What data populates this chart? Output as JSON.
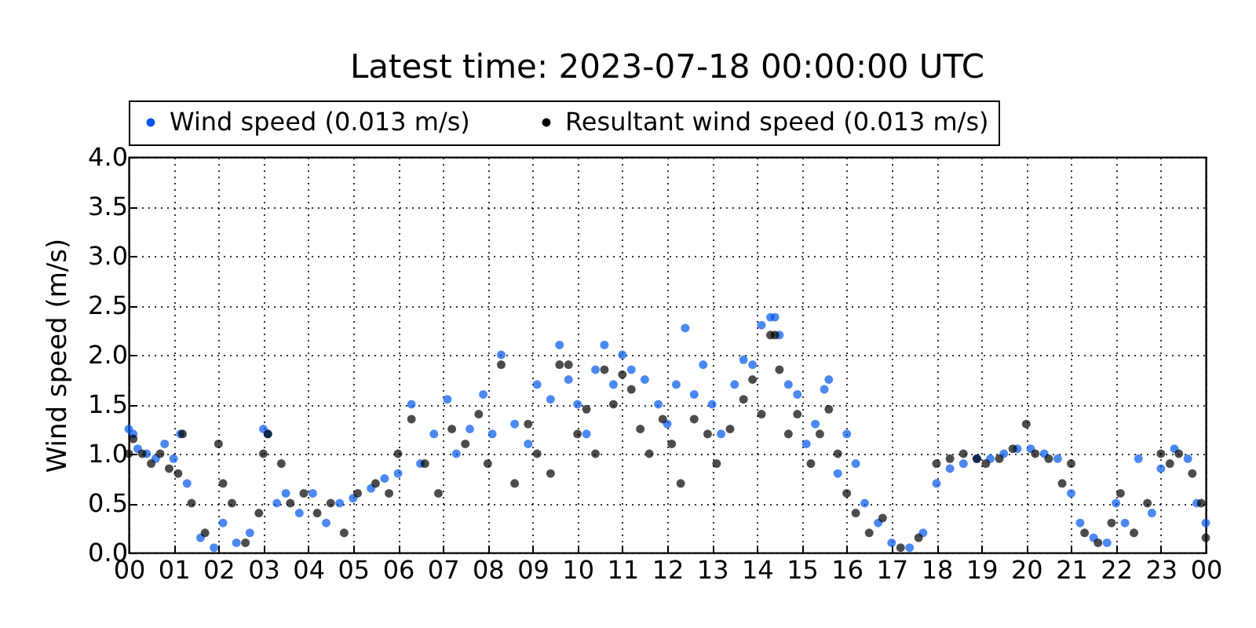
{
  "chart_data": {
    "type": "scatter",
    "title": "Latest time: 2023-07-18 00:00:00 UTC",
    "ylabel": "Wind speed (m/s)",
    "xlim": [
      0,
      24
    ],
    "ylim": [
      0,
      4
    ],
    "xticks": [
      {
        "value": 0,
        "label": "00"
      },
      {
        "value": 1,
        "label": "01"
      },
      {
        "value": 2,
        "label": "02"
      },
      {
        "value": 3,
        "label": "03"
      },
      {
        "value": 4,
        "label": "04"
      },
      {
        "value": 5,
        "label": "05"
      },
      {
        "value": 6,
        "label": "06"
      },
      {
        "value": 7,
        "label": "07"
      },
      {
        "value": 8,
        "label": "08"
      },
      {
        "value": 9,
        "label": "09"
      },
      {
        "value": 10,
        "label": "10"
      },
      {
        "value": 11,
        "label": "11"
      },
      {
        "value": 12,
        "label": "12"
      },
      {
        "value": 13,
        "label": "13"
      },
      {
        "value": 14,
        "label": "14"
      },
      {
        "value": 15,
        "label": "15"
      },
      {
        "value": 16,
        "label": "16"
      },
      {
        "value": 17,
        "label": "17"
      },
      {
        "value": 18,
        "label": "18"
      },
      {
        "value": 19,
        "label": "19"
      },
      {
        "value": 20,
        "label": "20"
      },
      {
        "value": 21,
        "label": "21"
      },
      {
        "value": 22,
        "label": "22"
      },
      {
        "value": 23,
        "label": "23"
      },
      {
        "value": 24,
        "label": "00"
      }
    ],
    "yticks": [
      {
        "value": 0,
        "label": "0.0"
      },
      {
        "value": 0.5,
        "label": "0.5"
      },
      {
        "value": 1,
        "label": "1.0"
      },
      {
        "value": 1.5,
        "label": "1.5"
      },
      {
        "value": 2,
        "label": "2.0"
      },
      {
        "value": 2.5,
        "label": "2.5"
      },
      {
        "value": 3,
        "label": "3.0"
      },
      {
        "value": 3.5,
        "label": "3.5"
      },
      {
        "value": 4,
        "label": "4.0"
      }
    ],
    "grid": true,
    "legend": "top",
    "marker": "circle",
    "series": [
      {
        "name": "Wind speed (0.013 m/s)",
        "color": "#0055ee",
        "x": [
          0.0,
          0.1,
          0.2,
          0.4,
          0.6,
          0.8,
          1.0,
          1.15,
          1.3,
          1.6,
          1.9,
          2.1,
          2.4,
          2.7,
          3.0,
          3.1,
          3.3,
          3.5,
          3.8,
          4.1,
          4.4,
          4.7,
          5.0,
          5.4,
          5.7,
          6.0,
          6.3,
          6.5,
          6.8,
          7.1,
          7.3,
          7.6,
          7.9,
          8.1,
          8.3,
          8.6,
          8.9,
          9.1,
          9.4,
          9.6,
          9.8,
          10.0,
          10.2,
          10.4,
          10.6,
          10.8,
          11.0,
          11.2,
          11.5,
          11.8,
          12.0,
          12.2,
          12.4,
          12.6,
          12.8,
          13.0,
          13.2,
          13.5,
          13.7,
          13.9,
          14.1,
          14.3,
          14.4,
          14.5,
          14.7,
          14.9,
          15.1,
          15.3,
          15.5,
          15.6,
          15.8,
          16.0,
          16.2,
          16.4,
          16.7,
          17.0,
          17.4,
          17.7,
          18.0,
          18.3,
          18.6,
          18.9,
          19.2,
          19.5,
          19.8,
          20.1,
          20.4,
          20.7,
          21.0,
          21.2,
          21.5,
          21.8,
          22.0,
          22.2,
          22.5,
          22.8,
          23.0,
          23.3,
          23.6,
          23.8,
          24.0
        ],
        "values": [
          1.25,
          1.2,
          1.05,
          1.0,
          0.95,
          1.1,
          0.95,
          1.2,
          0.7,
          0.15,
          0.05,
          0.3,
          0.1,
          0.2,
          1.25,
          1.2,
          0.5,
          0.6,
          0.4,
          0.6,
          0.3,
          0.5,
          0.55,
          0.65,
          0.75,
          0.8,
          1.5,
          0.9,
          1.2,
          1.55,
          1.0,
          1.25,
          1.6,
          1.2,
          2.0,
          1.3,
          1.1,
          1.7,
          1.55,
          2.1,
          1.75,
          1.5,
          1.2,
          1.85,
          2.1,
          1.7,
          2.0,
          1.85,
          1.75,
          1.5,
          1.3,
          1.7,
          2.27,
          1.6,
          1.9,
          1.5,
          1.2,
          1.7,
          1.95,
          1.9,
          2.3,
          2.38,
          2.38,
          2.2,
          1.7,
          1.6,
          1.1,
          1.3,
          1.65,
          1.75,
          0.8,
          1.2,
          0.9,
          0.5,
          0.3,
          0.1,
          0.05,
          0.2,
          0.7,
          0.85,
          0.9,
          0.95,
          0.95,
          1.0,
          1.05,
          1.05,
          1.0,
          0.95,
          0.6,
          0.3,
          0.15,
          0.1,
          0.5,
          0.3,
          0.95,
          0.4,
          0.85,
          1.05,
          0.95,
          0.5,
          0.3
        ]
      },
      {
        "name": "Resultant wind speed (0.013 m/s)",
        "color": "#000000",
        "x": [
          0.0,
          0.1,
          0.3,
          0.5,
          0.7,
          0.9,
          1.1,
          1.2,
          1.4,
          1.7,
          2.0,
          2.1,
          2.3,
          2.6,
          2.9,
          3.0,
          3.1,
          3.4,
          3.6,
          3.9,
          4.2,
          4.5,
          4.8,
          5.1,
          5.5,
          5.8,
          6.0,
          6.3,
          6.6,
          6.9,
          7.2,
          7.5,
          7.8,
          8.0,
          8.3,
          8.6,
          8.9,
          9.1,
          9.4,
          9.6,
          9.8,
          10.0,
          10.2,
          10.4,
          10.6,
          10.8,
          11.0,
          11.2,
          11.4,
          11.6,
          11.9,
          12.1,
          12.3,
          12.6,
          12.9,
          13.1,
          13.4,
          13.7,
          13.9,
          14.1,
          14.3,
          14.4,
          14.5,
          14.7,
          14.9,
          15.2,
          15.4,
          15.6,
          15.8,
          16.0,
          16.2,
          16.5,
          16.8,
          17.2,
          17.6,
          18.0,
          18.3,
          18.6,
          18.9,
          19.1,
          19.4,
          19.7,
          20.0,
          20.2,
          20.5,
          20.8,
          21.0,
          21.3,
          21.6,
          21.9,
          22.1,
          22.4,
          22.7,
          23.0,
          23.2,
          23.4,
          23.7,
          23.9,
          24.0
        ],
        "values": [
          1.0,
          1.15,
          1.0,
          0.9,
          1.0,
          0.85,
          0.8,
          1.2,
          0.5,
          0.2,
          1.1,
          0.7,
          0.5,
          0.1,
          0.4,
          1.0,
          1.2,
          0.9,
          0.5,
          0.6,
          0.4,
          0.5,
          0.2,
          0.6,
          0.7,
          0.6,
          1.0,
          1.35,
          0.9,
          0.6,
          1.25,
          1.1,
          1.4,
          0.9,
          1.9,
          0.7,
          1.3,
          1.0,
          0.8,
          1.9,
          1.9,
          1.2,
          1.45,
          1.0,
          1.85,
          1.5,
          1.8,
          1.65,
          1.25,
          1.0,
          1.35,
          1.1,
          0.7,
          1.35,
          1.2,
          0.9,
          1.25,
          1.55,
          1.75,
          1.4,
          2.2,
          2.2,
          1.85,
          1.2,
          1.4,
          0.9,
          1.2,
          1.45,
          1.0,
          0.6,
          0.4,
          0.2,
          0.35,
          0.05,
          0.15,
          0.9,
          0.95,
          1.0,
          0.95,
          0.9,
          0.95,
          1.05,
          1.3,
          1.0,
          0.95,
          0.7,
          0.9,
          0.2,
          0.1,
          0.3,
          0.6,
          0.2,
          0.5,
          1.0,
          0.9,
          1.0,
          0.8,
          0.5,
          0.15
        ]
      }
    ]
  }
}
